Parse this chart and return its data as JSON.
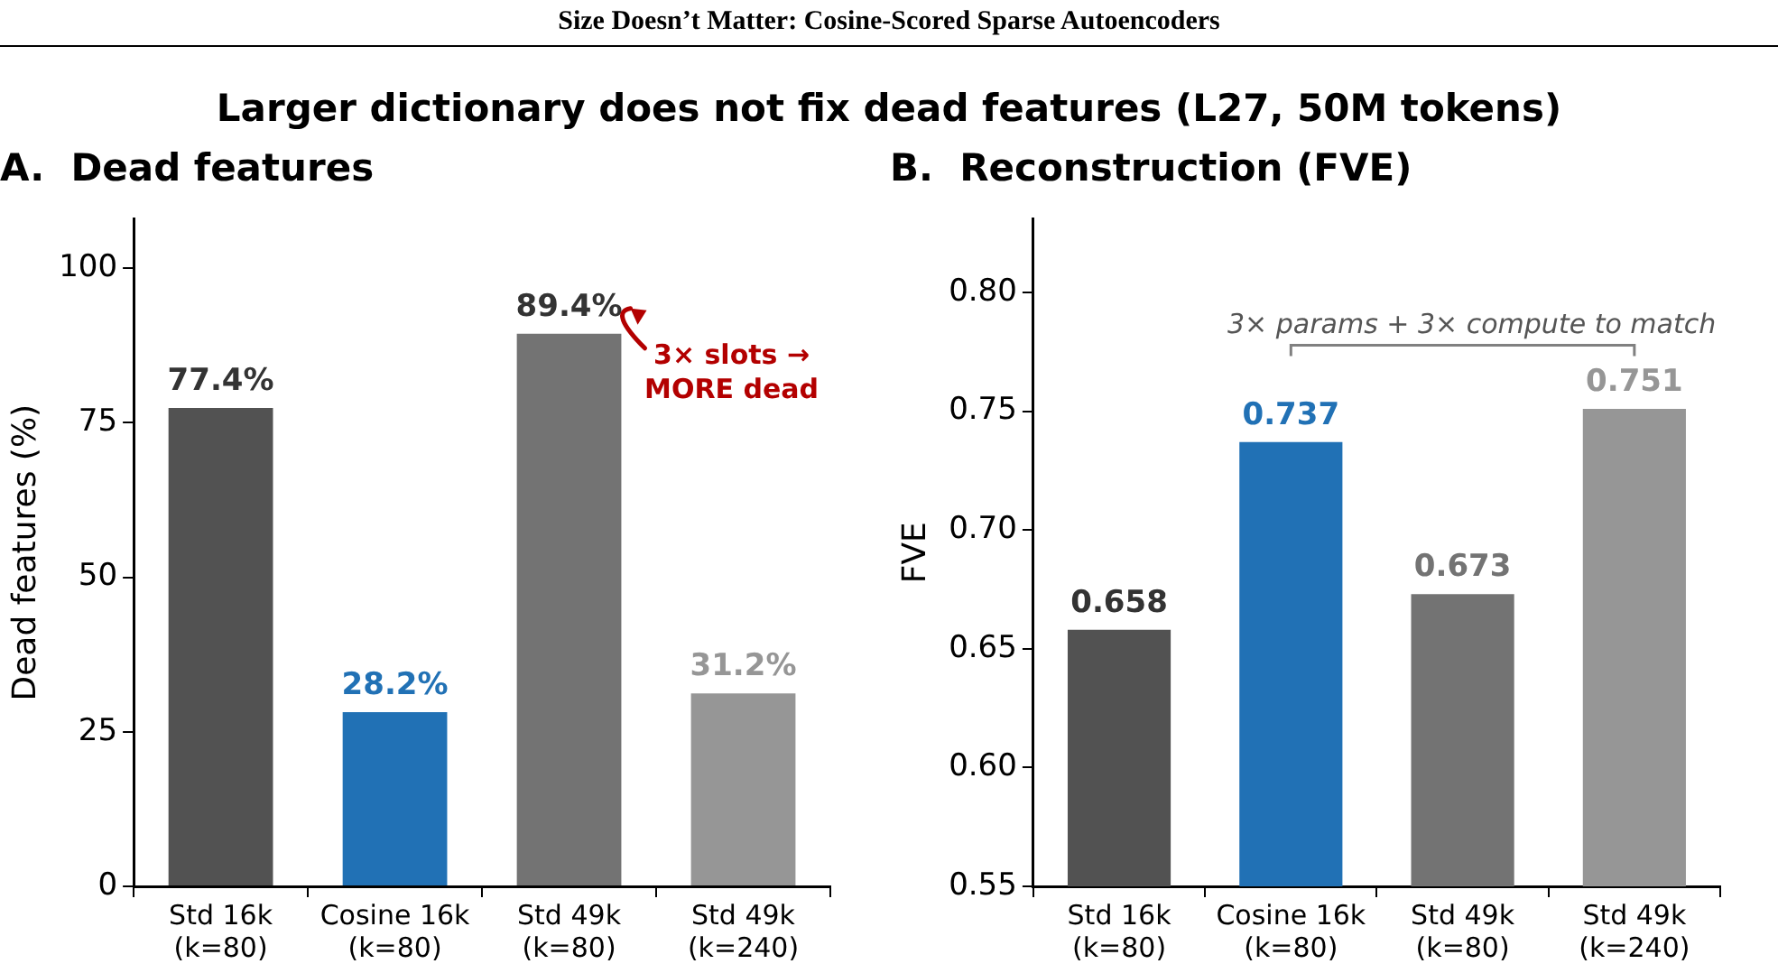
{
  "chart_data": [
    {
      "type": "bar",
      "title": "A.  Dead features",
      "ylabel": "Dead features (%)",
      "categories": [
        "Std 16k\n(k=80)",
        "Cosine 16k\n(k=80)",
        "Std 49k\n(k=80)",
        "Std 49k\n(k=240)"
      ],
      "values": [
        77.4,
        28.2,
        89.4,
        31.2
      ],
      "colors": [
        "#525252",
        "#2171b5",
        "#737373",
        "#969696"
      ],
      "value_labels": [
        "77.4%",
        "28.2%",
        "89.4%",
        "31.2%"
      ],
      "ylim": [
        0,
        108
      ],
      "yticks": [
        0,
        25,
        50,
        75,
        100
      ],
      "grid": false,
      "legend": false,
      "annotations": [
        "Size Doesn’t Matter: Cosine-Scored Sparse Autoencoders",
        "Larger dictionary does not fix dead features  (L27, 50M tokens)",
        {
          "text": "3× slots → MORE dead",
          "x": "Std 49k\n(k=80)",
          "y": 89.4
        }
      ]
    },
    {
      "type": "bar",
      "title": "B.  Reconstruction (FVE)",
      "ylabel": "FVE",
      "categories": [
        "Std 16k\n(k=80)",
        "Cosine 16k\n(k=80)",
        "Std 49k\n(k=80)",
        "Std 49k\n(k=240)"
      ],
      "values": [
        0.658,
        0.737,
        0.673,
        0.751
      ],
      "colors": [
        "#525252",
        "#2171b5",
        "#737373",
        "#969696"
      ],
      "data_labels": true,
      "ylim": [
        0.55,
        0.831
      ],
      "yticks": [
        0.55,
        {
          "value": 0.6,
          "label": "0.60"
        },
        0.65,
        {
          "value": 0.7,
          "label": "0.70"
        },
        0.75,
        {
          "value": 0.8,
          "label": "0.80"
        }
      ],
      "grid": false,
      "legend": false,
      "annotations": [
        "3× params + 3× compute to match"
      ]
    }
  ]
}
